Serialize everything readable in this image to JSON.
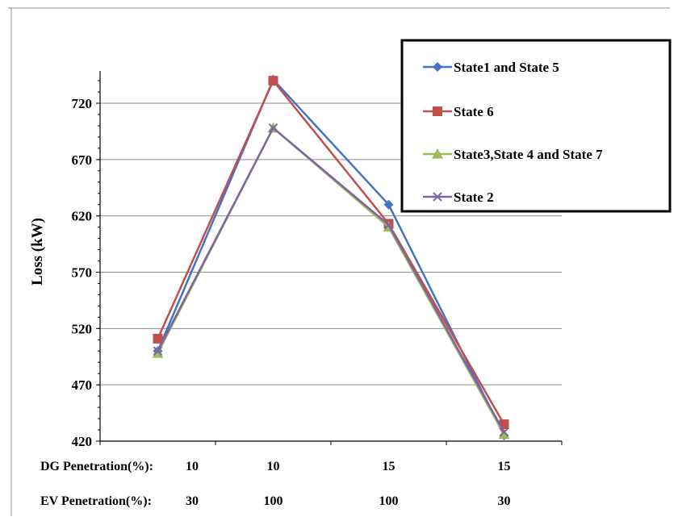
{
  "chart_data": {
    "type": "line",
    "ylabel": "Loss (kW)",
    "ylim": [
      420,
      750
    ],
    "yticks": [
      420,
      470,
      520,
      570,
      620,
      670,
      720
    ],
    "grid": "horizontal",
    "legend_position": "top-right",
    "category_rows": [
      {
        "label": "DG Penetration(%):",
        "values": [
          "10",
          "10",
          "15",
          "15"
        ]
      },
      {
        "label": "EV Penetration(%):",
        "values": [
          "30",
          "100",
          "100",
          "30"
        ]
      }
    ],
    "series": [
      {
        "name": "State1 and State 5",
        "color": "#4472c4",
        "marker": "diamond",
        "values": [
          500,
          741,
          630,
          425
        ]
      },
      {
        "name": "State 6",
        "color": "#c0504d",
        "marker": "square",
        "values": [
          511,
          740,
          613,
          435
        ]
      },
      {
        "name": "State3,State 4 and State 7",
        "color": "#9bbb59",
        "marker": "triangle",
        "values": [
          498,
          698,
          610,
          426
        ]
      },
      {
        "name": "State 2",
        "color": "#8064a2",
        "marker": "x",
        "values": [
          500,
          698,
          612,
          428
        ]
      }
    ]
  }
}
